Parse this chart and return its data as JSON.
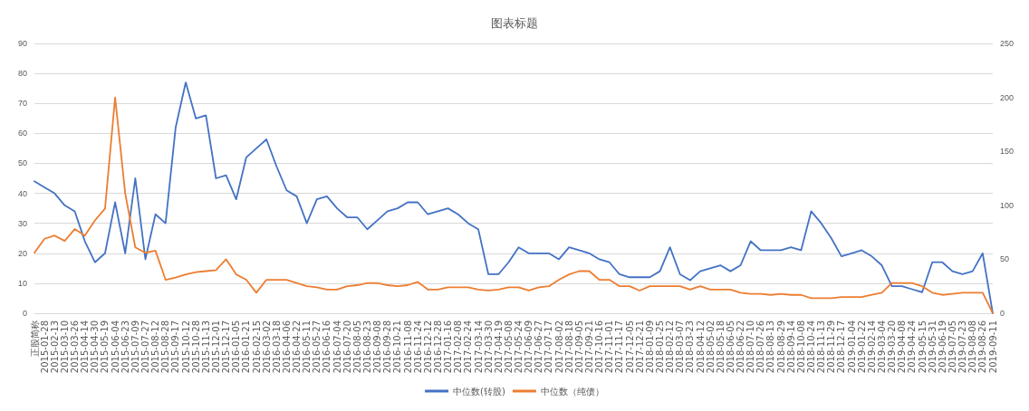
{
  "chart_data": {
    "type": "line",
    "title": "图表标题",
    "categories": [
      "正股简称",
      "2015-01-28",
      "2015-02-13",
      "2015-03-10",
      "2015-03-26",
      "2015-04-14",
      "2015-04-30",
      "2015-05-19",
      "2015-06-04",
      "2015-06-23",
      "2015-07-09",
      "2015-07-27",
      "2015-08-12",
      "2015-08-28",
      "2015-09-17",
      "2015-10-12",
      "2015-10-28",
      "2015-11-13",
      "2015-12-01",
      "2015-12-17",
      "2016-01-05",
      "2016-01-21",
      "2016-02-15",
      "2016-03-02",
      "2016-03-18",
      "2016-04-06",
      "2016-04-22",
      "2016-05-11",
      "2016-05-27",
      "2016-06-16",
      "2016-07-04",
      "2016-07-20",
      "2016-08-05",
      "2016-08-23",
      "2016-09-08",
      "2016-09-28",
      "2016-10-21",
      "2016-11-08",
      "2016-11-24",
      "2016-12-12",
      "2016-12-28",
      "2017-01-16",
      "2017-02-08",
      "2017-02-24",
      "2017-03-14",
      "2017-03-30",
      "2017-04-19",
      "2017-05-08",
      "2017-05-24",
      "2017-06-09",
      "2017-06-27",
      "2017-07-17",
      "2017-08-02",
      "2017-08-18",
      "2017-09-05",
      "2017-09-21",
      "2017-10-16",
      "2017-11-01",
      "2017-11-17",
      "2017-12-05",
      "2017-12-21",
      "2018-01-09",
      "2018-01-25",
      "2018-02-12",
      "2018-03-07",
      "2018-03-23",
      "2018-04-12",
      "2018-05-02",
      "2018-05-18",
      "2018-06-05",
      "2018-06-22",
      "2018-07-10",
      "2018-07-26",
      "2018-08-13",
      "2018-08-29",
      "2018-09-14",
      "2018-10-08",
      "2018-10-24",
      "2018-11-13",
      "2018-11-29",
      "2018-12-17",
      "2019-01-04",
      "2019-01-22",
      "2019-02-14",
      "2019-03-04",
      "2019-03-20",
      "2019-04-08",
      "2019-04-24",
      "2019-05-15",
      "2019-05-31",
      "2019-06-19",
      "2019-07-05",
      "2019-07-23",
      "2019-08-08",
      "2019-08-26",
      "2019-09-11"
    ],
    "series": [
      {
        "name": "中位数(转股)",
        "color": "#4472c4",
        "values": [
          44,
          42,
          40,
          36,
          34,
          24,
          17,
          20,
          37,
          20,
          45,
          18,
          33,
          30,
          62,
          77,
          65,
          66,
          45,
          46,
          38,
          52,
          55,
          58,
          49,
          41,
          39,
          30,
          38,
          39,
          35,
          32,
          32,
          28,
          31,
          34,
          35,
          37,
          37,
          33,
          34,
          35,
          33,
          30,
          28,
          13,
          13,
          17,
          22,
          20,
          20,
          20,
          18,
          22,
          21,
          20,
          18,
          17,
          13,
          12,
          12,
          12,
          14,
          22,
          13,
          11,
          14,
          15,
          16,
          14,
          16,
          24,
          21,
          21,
          21,
          22,
          21,
          34,
          30,
          25,
          19,
          20,
          21,
          19,
          16,
          9,
          9,
          8,
          7,
          17,
          17,
          14,
          13,
          14,
          20,
          0
        ]
      },
      {
        "name": "中位数（纯债）",
        "color": "#ed7d31",
        "axis": "y2",
        "values": [
          56,
          69,
          72,
          67,
          78,
          72,
          86,
          97,
          200,
          111,
          61,
          56,
          58,
          31,
          33,
          36,
          38,
          39,
          40,
          50,
          36,
          31,
          19,
          31,
          31,
          31,
          28,
          25,
          24,
          22,
          22,
          25,
          26,
          28,
          28,
          26,
          25,
          26,
          29,
          22,
          22,
          24,
          24,
          24,
          22,
          21,
          22,
          24,
          24,
          21,
          24,
          25,
          31,
          36,
          39,
          39,
          31,
          31,
          25,
          25,
          21,
          25,
          25,
          25,
          25,
          22,
          25,
          22,
          22,
          22,
          19,
          18,
          18,
          17,
          18,
          17,
          17,
          14,
          14,
          14,
          15,
          15,
          15,
          17,
          19,
          28,
          28,
          28,
          25,
          19,
          17,
          18,
          19,
          19,
          19,
          0
        ]
      }
    ],
    "ylim": [
      0,
      90
    ],
    "yticks": [
      0,
      10,
      20,
      30,
      40,
      50,
      60,
      70,
      80,
      90
    ],
    "y2lim": [
      0,
      250
    ],
    "y2ticks": [
      0,
      50,
      100,
      150,
      200,
      250
    ],
    "grid": "y",
    "legend": "bottom",
    "marker": "none",
    "line_style": "solid"
  }
}
